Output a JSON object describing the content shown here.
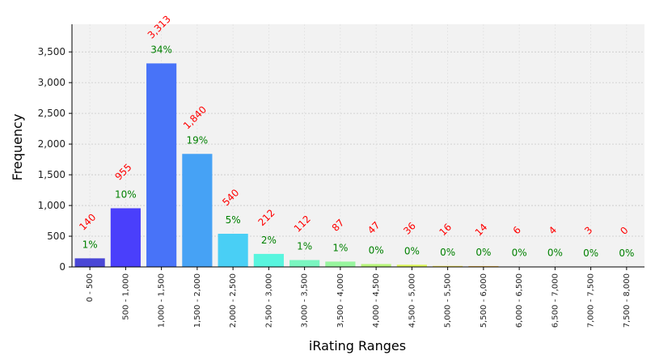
{
  "chart_data": {
    "type": "bar",
    "xlabel": "iRating Ranges",
    "ylabel": "Frequency",
    "ylim": [
      0,
      3950
    ],
    "y_ticks": [
      0,
      500,
      1000,
      1500,
      2000,
      2500,
      3000,
      3500
    ],
    "y_tick_labels": [
      "0",
      "500",
      "1,000",
      "1,500",
      "2,000",
      "2,500",
      "3,000",
      "3,500"
    ],
    "grid": true,
    "background": "#f2f2f2",
    "count_label_color": "#ff0000",
    "pct_label_color": "#008000",
    "categories": [
      "0 - 500",
      "500 - 1,000",
      "1,000 - 1,500",
      "1,500 - 2,000",
      "2,000 - 2,500",
      "2,500 - 3,000",
      "3,000 - 3,500",
      "3,500 - 4,000",
      "4,000 - 4,500",
      "4,500 - 5,000",
      "5,000 - 5,500",
      "5,500 - 6,000",
      "6,000 - 6,500",
      "6,500 - 7,000",
      "7,000 - 7,500",
      "7,500 - 8,000"
    ],
    "values": [
      140,
      955,
      3313,
      1840,
      540,
      212,
      112,
      87,
      47,
      36,
      16,
      14,
      6,
      4,
      3,
      0
    ],
    "count_labels": [
      "140",
      "955",
      "3,313",
      "1,840",
      "540",
      "212",
      "112",
      "87",
      "47",
      "36",
      "16",
      "14",
      "6",
      "4",
      "3",
      "0"
    ],
    "pct_labels": [
      "1%",
      "10%",
      "34%",
      "19%",
      "5%",
      "2%",
      "1%",
      "1%",
      "0%",
      "0%",
      "0%",
      "0%",
      "0%",
      "0%",
      "0%",
      "0%"
    ],
    "bar_colors": [
      "#4a47d6",
      "#4a3ffb",
      "#4873f8",
      "#46a2f5",
      "#49cff5",
      "#58f5de",
      "#7af6c0",
      "#97f59e",
      "#b8f57a",
      "#dcf65a",
      "#f4e24a",
      "#f9c048",
      "#fa9a42",
      "#f8723b",
      "#f24830",
      "#e02020"
    ]
  }
}
